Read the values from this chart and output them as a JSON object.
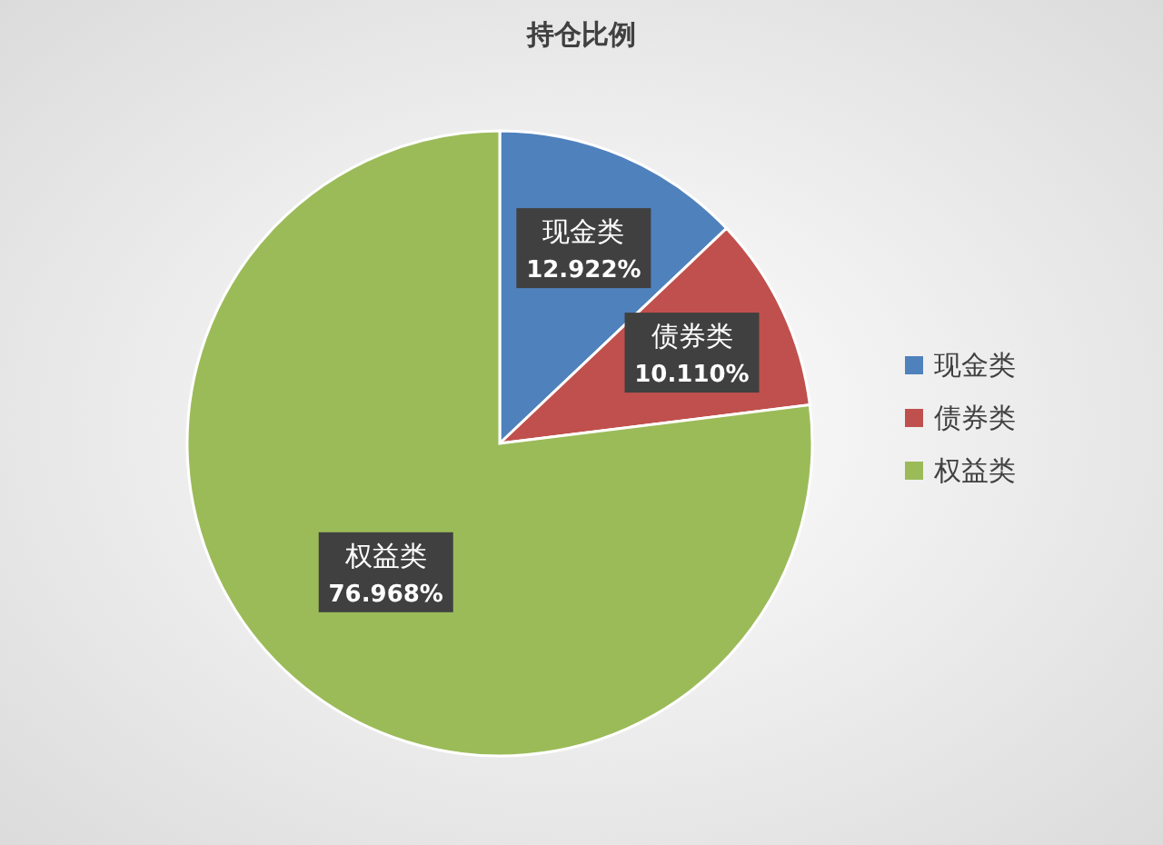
{
  "chart_data": {
    "type": "pie",
    "title": "持仓比例",
    "categories": [
      "现金类",
      "债券类",
      "权益类"
    ],
    "values": [
      12.922,
      10.11,
      76.968
    ],
    "colors": [
      "#4f81bd",
      "#c0504d",
      "#9bbb59"
    ],
    "value_labels": [
      "12.922%",
      "10.110%",
      "76.968%"
    ],
    "legend": "right"
  }
}
